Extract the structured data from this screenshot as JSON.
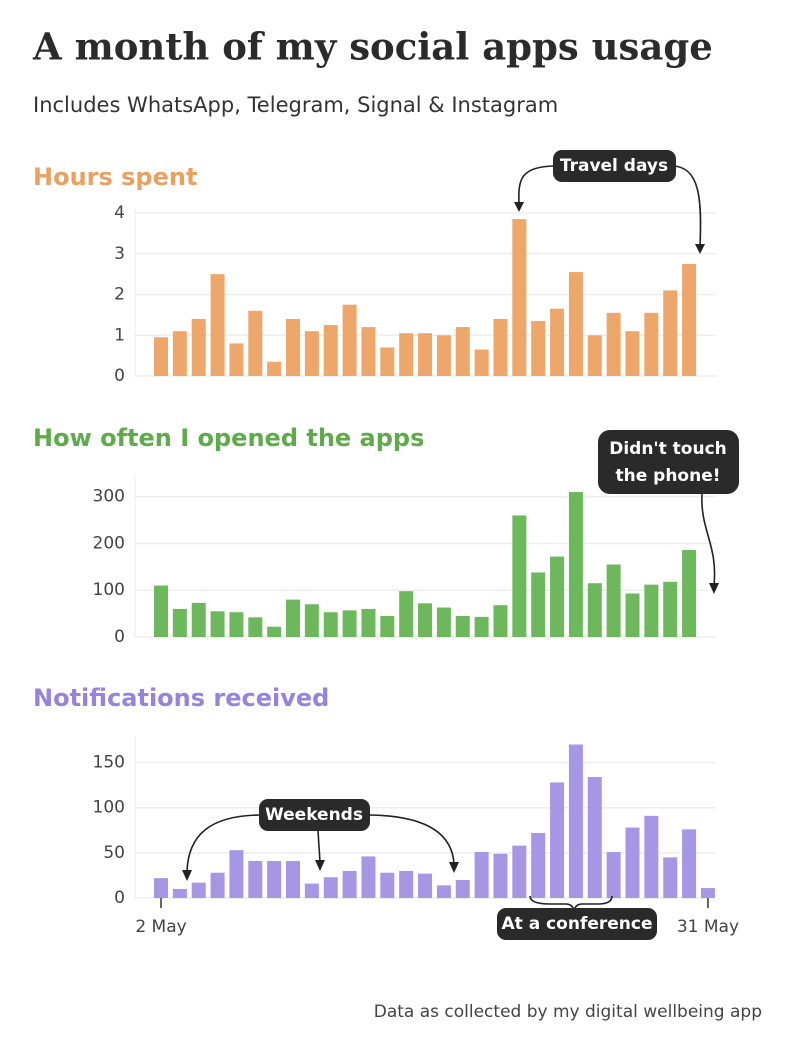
{
  "title": "A month of my social apps usage",
  "subtitle": "Includes WhatsApp, Telegram, Signal & Instagram",
  "source": "Data as collected by my digital wellbeing app",
  "chart_data": [
    {
      "type": "bar",
      "title": "Hours spent",
      "color": "#eda76b",
      "title_color": "#e9a161",
      "categories": [
        "2 May",
        null,
        null,
        null,
        null,
        null,
        null,
        null,
        null,
        null,
        null,
        null,
        null,
        null,
        null,
        null,
        null,
        null,
        null,
        null,
        null,
        null,
        null,
        null,
        null,
        null,
        null,
        null,
        null,
        "31 May"
      ],
      "values": [
        0.95,
        1.1,
        1.4,
        2.5,
        0.8,
        1.6,
        0.35,
        1.4,
        1.1,
        1.25,
        1.75,
        1.2,
        0.7,
        1.05,
        1.05,
        1.0,
        1.2,
        0.65,
        1.4,
        3.85,
        1.35,
        1.65,
        2.55,
        1.0,
        1.55,
        1.1,
        1.55,
        2.1,
        2.75,
        0
      ],
      "ylim": [
        0,
        4
      ],
      "yticks": [
        0,
        1,
        2,
        3,
        4
      ],
      "grid": true,
      "annotations": [
        "Travel days"
      ]
    },
    {
      "type": "bar",
      "title": "How often I opened the apps",
      "color": "#6db85c",
      "title_color": "#5eab4a",
      "categories": [
        "2 May",
        null,
        null,
        null,
        null,
        null,
        null,
        null,
        null,
        null,
        null,
        null,
        null,
        null,
        null,
        null,
        null,
        null,
        null,
        null,
        null,
        null,
        null,
        null,
        null,
        null,
        null,
        null,
        null,
        "31 May"
      ],
      "values": [
        110,
        60,
        73,
        55,
        53,
        42,
        22,
        80,
        70,
        53,
        57,
        60,
        45,
        98,
        72,
        63,
        45,
        43,
        68,
        260,
        138,
        172,
        310,
        115,
        155,
        93,
        112,
        118,
        186,
        0
      ],
      "ylim": [
        0,
        340
      ],
      "yticks": [
        0,
        100,
        200,
        300
      ],
      "grid": true,
      "annotations": [
        "Didn't touch",
        "the phone!"
      ]
    },
    {
      "type": "bar",
      "title": "Notifications received",
      "color": "#a796e4",
      "title_color": "#9583e0",
      "categories": [
        "2 May",
        null,
        null,
        null,
        null,
        null,
        null,
        null,
        null,
        null,
        null,
        null,
        null,
        null,
        null,
        null,
        null,
        null,
        null,
        null,
        null,
        null,
        null,
        null,
        null,
        null,
        null,
        null,
        null,
        "31 May"
      ],
      "values": [
        22,
        10,
        17,
        28,
        53,
        41,
        41,
        41,
        16,
        23,
        30,
        46,
        28,
        30,
        27,
        14,
        20,
        51,
        49,
        58,
        72,
        128,
        170,
        134,
        51,
        78,
        91,
        45,
        76,
        11
      ],
      "ylim": [
        0,
        175
      ],
      "yticks": [
        0,
        50,
        100,
        150
      ],
      "grid": true,
      "annotations": [
        "Weekends",
        "At a conference"
      ]
    }
  ]
}
